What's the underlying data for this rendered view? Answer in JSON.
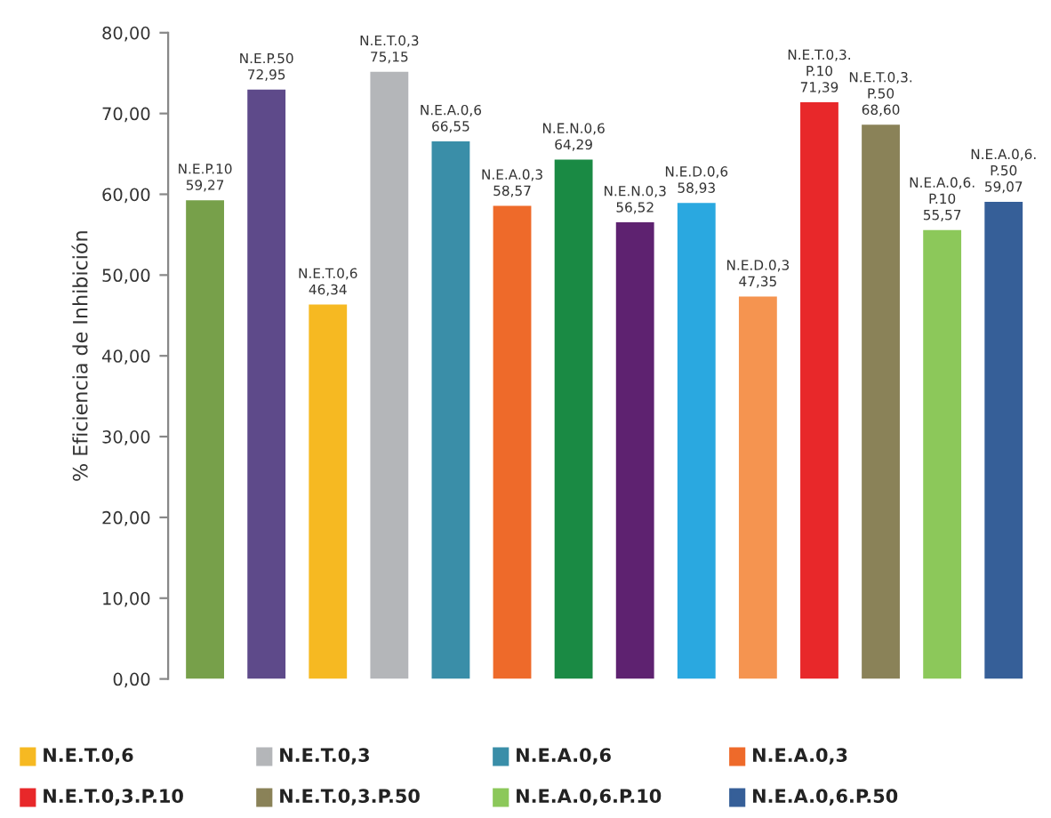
{
  "chart_data": {
    "type": "bar",
    "ylabel": "% Eficiencia de Inhibición",
    "categories": [
      null,
      null,
      null,
      null,
      null,
      null,
      null,
      null,
      null,
      null,
      null,
      null,
      null,
      null
    ],
    "values": [
      59.27,
      72.95,
      46.34,
      75.15,
      66.55,
      58.57,
      64.29,
      56.52,
      58.93,
      47.35,
      71.39,
      68.6,
      55.57,
      59.07
    ],
    "colors": [
      "#77a04a",
      "#5e4a8a",
      "#f6b922",
      "#b4b6b9",
      "#3a8ea8",
      "#ee6a2a",
      "#1a8a44",
      "#5e2270",
      "#2aa8e0",
      "#f59450",
      "#e8282a",
      "#8a8258",
      "#8cc85a",
      "#365f98"
    ],
    "value_labels": [
      "N.E.P.10\n59,27",
      "N.E.P.50\n72,95",
      "N.E.T.0,6\n46,34",
      "N.E.T.0,3\n75,15",
      "N.E.A.0,6\n66,55",
      "N.E.A.0,3\n58,57",
      "N.E.N.0,6\n64,29",
      "N.E.N.0,3\n56,52",
      "N.E.D.0,6\n58,93",
      "N.E.D.0,3\n47,35",
      "N.E.T.0,3.\nP.10\n71,39",
      "N.E.T.0,3.\nP.50\n68,60",
      "N.E.A.0,6.\nP.10\n55,57",
      "N.E.A.0,6.\nP.50\n59,07"
    ],
    "annotations": [
      "N.E.T.0,6",
      "N.E.T.0,3",
      "N.E.A.0,6",
      "N.E.A.0,3",
      "N.E.T.0,3.P.10",
      "N.E.T.0,3.P.50",
      "N.E.A.0,6.P.10",
      "N.E.A.0,6.P.50"
    ],
    "ylim": [
      0,
      80
    ],
    "yticks": [
      {
        "value": 0,
        "label": "0,00"
      },
      {
        "value": 10,
        "label": "10,00"
      },
      {
        "value": 20,
        "label": "20,00"
      },
      {
        "value": 30,
        "label": "30,00"
      },
      {
        "value": 40,
        "label": "40,00"
      },
      {
        "value": 50,
        "label": "50,00"
      },
      {
        "value": 60,
        "label": "60,00"
      },
      {
        "value": 70,
        "label": "70,00"
      },
      {
        "value": 80,
        "label": "80,00"
      }
    ],
    "tick_labels": "y",
    "grid": false
  }
}
